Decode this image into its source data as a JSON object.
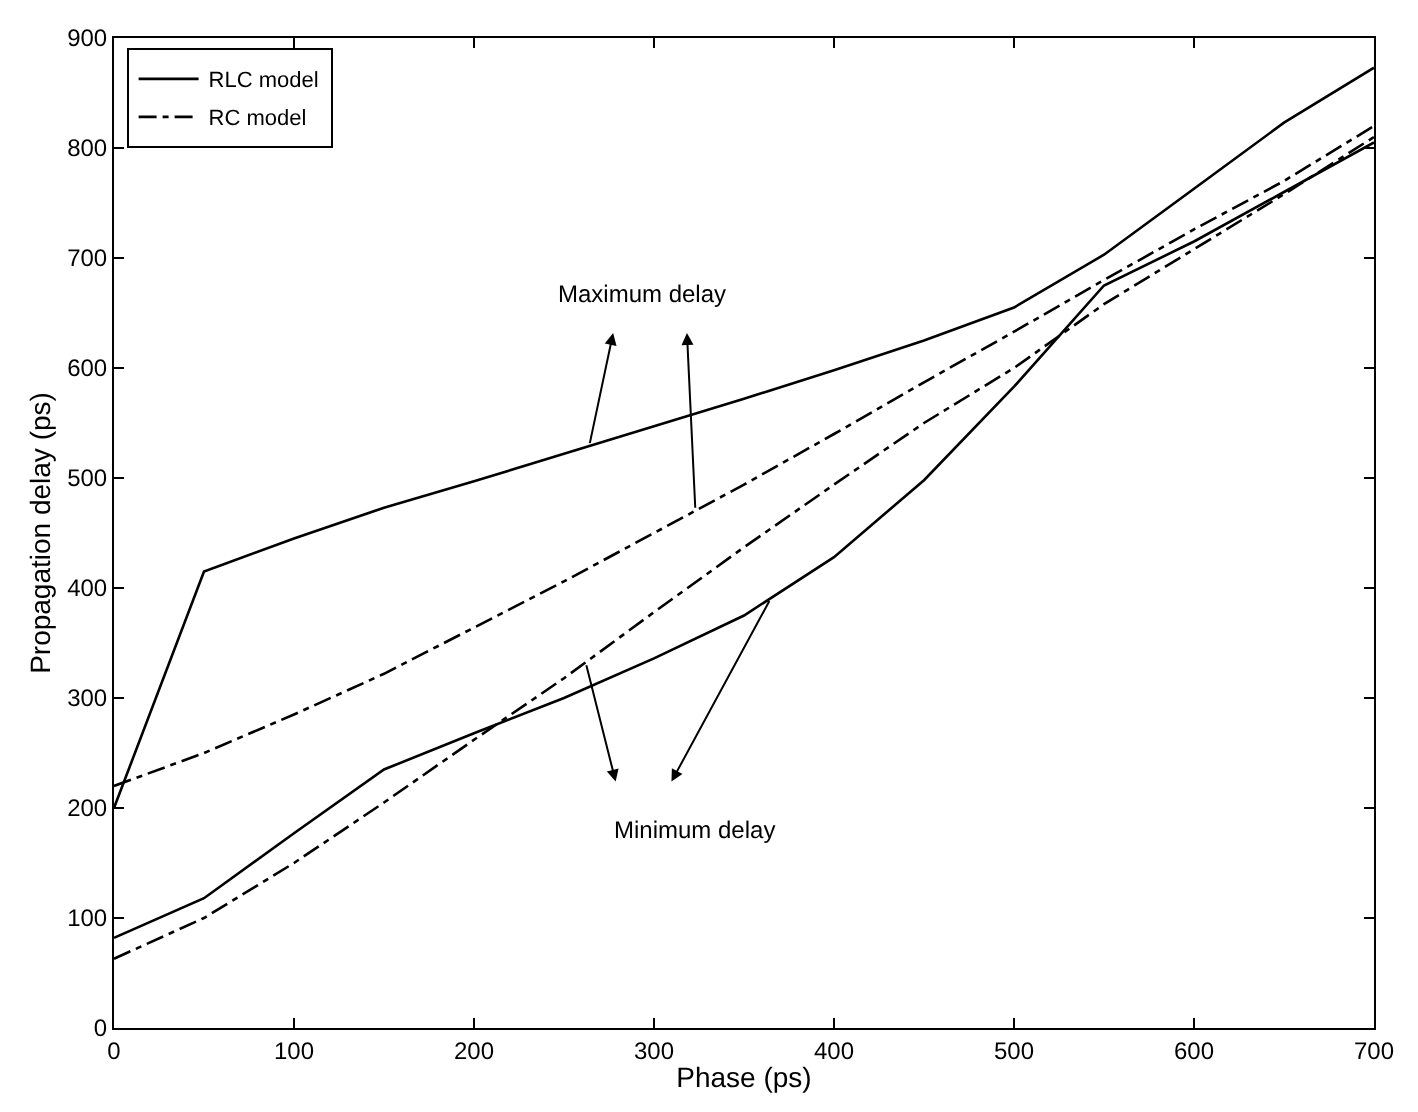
{
  "chart_data": {
    "type": "line",
    "xlabel": "Phase (ps)",
    "ylabel": "Propagation delay (ps)",
    "x": [
      0,
      50,
      100,
      150,
      200,
      250,
      300,
      350,
      400,
      450,
      500,
      550,
      600,
      650,
      700
    ],
    "series": [
      {
        "name": "RLC model",
        "color": "#000000",
        "line_style": "solid",
        "values": [
          200,
          415,
          445,
          473,
          497,
          522,
          547,
          572,
          598,
          625,
          655,
          703,
          763,
          823,
          873
        ]
      },
      {
        "color": "#000000",
        "line_style": "solid",
        "values": [
          82,
          118,
          177,
          235,
          268,
          300,
          336,
          375,
          428,
          498,
          583,
          675,
          715,
          760,
          805
        ]
      },
      {
        "name": "RC model",
        "color": "#000000",
        "line_style": "dashdot",
        "values": [
          220,
          250,
          285,
          322,
          364,
          406,
          450,
          494,
          540,
          587,
          633,
          680,
          726,
          770,
          820
        ]
      },
      {
        "color": "#000000",
        "line_style": "dashdot",
        "values": [
          63,
          100,
          150,
          205,
          262,
          318,
          378,
          437,
          494,
          550,
          600,
          658,
          708,
          758,
          810
        ]
      }
    ],
    "annotations": [
      "Maximum delay",
      "Minimum delay"
    ],
    "xlim": [
      0,
      700
    ],
    "xticks": [
      0,
      100,
      200,
      300,
      400,
      500,
      600,
      700
    ],
    "ylim": [
      0,
      900
    ],
    "yticks": [
      0,
      100,
      200,
      300,
      400,
      500,
      600,
      700,
      800,
      900
    ],
    "legend": "top left",
    "marker": "none"
  }
}
